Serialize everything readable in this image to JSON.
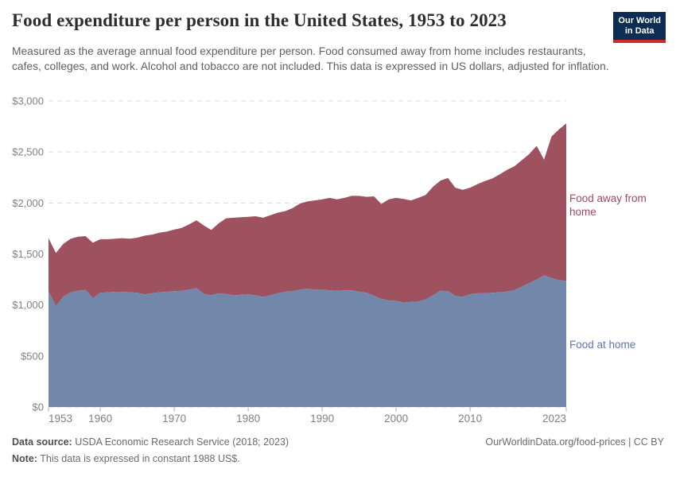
{
  "header": {
    "title": "Food expenditure per person in the United States, 1953 to 2023",
    "subtitle": "Measured as the average annual food expenditure per person. Food consumed away from home includes restaurants, cafes, colleges, and work. Alcohol and tobacco are not included. This data is expressed in US dollars, adjusted for inflation.",
    "logo": {
      "line1": "Our World",
      "line2": "in Data"
    }
  },
  "footer": {
    "source_label": "Data source:",
    "source_text": " USDA Economic Research Service (2018; 2023)",
    "note_label": "Note:",
    "note_text": " This data is expressed in constant 1988 US$.",
    "link": "OurWorldinData.org/food-prices | CC BY"
  },
  "colors": {
    "food_at_home_area": "#7288ab",
    "food_at_home_label": "#5878b4",
    "food_away_area": "#9e515f",
    "food_away_label": "#a04a5a",
    "gridline": "#dcdcdc",
    "tick_text": "#808080",
    "tick_mark": "#adadad",
    "logo_navy": "#0d2d52",
    "logo_red": "#cf2b24"
  },
  "chart_data": {
    "type": "area",
    "stacked": true,
    "title": "Food expenditure per person in the United States, 1953 to 2023",
    "grid": "horizontal-dashed",
    "legend_position": "right-of-plot-inline-labels",
    "ylim": [
      0,
      3000
    ],
    "x": [
      1953,
      1954,
      1955,
      1956,
      1957,
      1958,
      1959,
      1960,
      1961,
      1962,
      1963,
      1964,
      1965,
      1966,
      1967,
      1968,
      1969,
      1970,
      1971,
      1972,
      1973,
      1974,
      1975,
      1976,
      1977,
      1978,
      1979,
      1980,
      1981,
      1982,
      1983,
      1984,
      1985,
      1986,
      1987,
      1988,
      1989,
      1990,
      1991,
      1992,
      1993,
      1994,
      1995,
      1996,
      1997,
      1998,
      1999,
      2000,
      2001,
      2002,
      2003,
      2004,
      2005,
      2006,
      2007,
      2008,
      2009,
      2010,
      2011,
      2012,
      2013,
      2014,
      2015,
      2016,
      2017,
      2018,
      2019,
      2020,
      2021,
      2022,
      2023
    ],
    "series": [
      {
        "name": "Food at home",
        "color": "#7288ab",
        "label_color": "#5878b4",
        "values": [
          1135,
          990,
          1080,
          1125,
          1140,
          1148,
          1065,
          1120,
          1125,
          1130,
          1130,
          1125,
          1120,
          1105,
          1115,
          1125,
          1130,
          1135,
          1140,
          1150,
          1165,
          1110,
          1095,
          1115,
          1110,
          1095,
          1100,
          1105,
          1095,
          1080,
          1095,
          1115,
          1130,
          1135,
          1150,
          1160,
          1150,
          1150,
          1145,
          1140,
          1145,
          1145,
          1130,
          1120,
          1090,
          1060,
          1045,
          1040,
          1025,
          1030,
          1035,
          1055,
          1095,
          1140,
          1135,
          1090,
          1080,
          1105,
          1115,
          1115,
          1120,
          1125,
          1132,
          1145,
          1180,
          1215,
          1250,
          1290,
          1265,
          1245,
          1235
        ]
      },
      {
        "name": "Food away from home",
        "color": "#9e515f",
        "label_color": "#a04a5a",
        "values": [
          520,
          520,
          520,
          525,
          530,
          527,
          545,
          525,
          520,
          520,
          525,
          525,
          540,
          575,
          575,
          585,
          590,
          605,
          615,
          640,
          665,
          670,
          640,
          685,
          740,
          760,
          760,
          760,
          775,
          775,
          785,
          790,
          790,
          815,
          845,
          855,
          875,
          885,
          905,
          895,
          905,
          925,
          940,
          940,
          975,
          930,
          990,
          1010,
          1015,
          995,
          1015,
          1025,
          1065,
          1080,
          1110,
          1060,
          1050,
          1045,
          1070,
          1100,
          1120,
          1155,
          1193,
          1215,
          1240,
          1265,
          1310,
          1135,
          1385,
          1475,
          1545
        ]
      }
    ],
    "yticks": [
      {
        "v": 0,
        "label": "$0"
      },
      {
        "v": 500,
        "label": "$500"
      },
      {
        "v": 1000,
        "label": "$1,000"
      },
      {
        "v": 1500,
        "label": "$1,500"
      },
      {
        "v": 2000,
        "label": "$2,000"
      },
      {
        "v": 2500,
        "label": "$2,500"
      },
      {
        "v": 3000,
        "label": "$3,000"
      }
    ],
    "xticks": [
      {
        "v": 1953,
        "label": "1953",
        "anchor": "start"
      },
      {
        "v": 1960,
        "label": "1960"
      },
      {
        "v": 1970,
        "label": "1970"
      },
      {
        "v": 1980,
        "label": "1980"
      },
      {
        "v": 1990,
        "label": "1990"
      },
      {
        "v": 2000,
        "label": "2000"
      },
      {
        "v": 2010,
        "label": "2010"
      },
      {
        "v": 2023,
        "label": "2023",
        "anchor": "end"
      }
    ]
  }
}
